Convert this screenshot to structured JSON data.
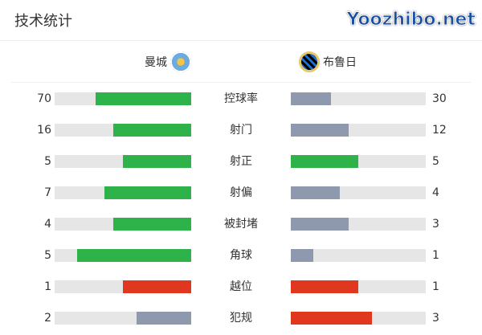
{
  "title": "技术统计",
  "home_team": {
    "name": "曼城",
    "crest_icon": "manchester-city-crest"
  },
  "away_team": {
    "name": "布鲁日",
    "crest_icon": "club-brugge-crest"
  },
  "colors": {
    "green": "#2db34a",
    "gray": "#8e99ae",
    "red": "#e0381f",
    "track": "#e6e6e6"
  },
  "stats": [
    {
      "label": "控球率",
      "home": 70,
      "away": 30,
      "home_color": "green",
      "away_color": "gray"
    },
    {
      "label": "射门",
      "home": 16,
      "away": 12,
      "home_color": "green",
      "away_color": "gray"
    },
    {
      "label": "射正",
      "home": 5,
      "away": 5,
      "home_color": "green",
      "away_color": "green"
    },
    {
      "label": "射偏",
      "home": 7,
      "away": 4,
      "home_color": "green",
      "away_color": "gray"
    },
    {
      "label": "被封堵",
      "home": 4,
      "away": 3,
      "home_color": "green",
      "away_color": "gray"
    },
    {
      "label": "角球",
      "home": 5,
      "away": 1,
      "home_color": "green",
      "away_color": "gray"
    },
    {
      "label": "越位",
      "home": 1,
      "away": 1,
      "home_color": "red",
      "away_color": "red"
    },
    {
      "label": "犯规",
      "home": 2,
      "away": 3,
      "home_color": "gray",
      "away_color": "red"
    }
  ],
  "watermark": "Yoozhibo.net"
}
